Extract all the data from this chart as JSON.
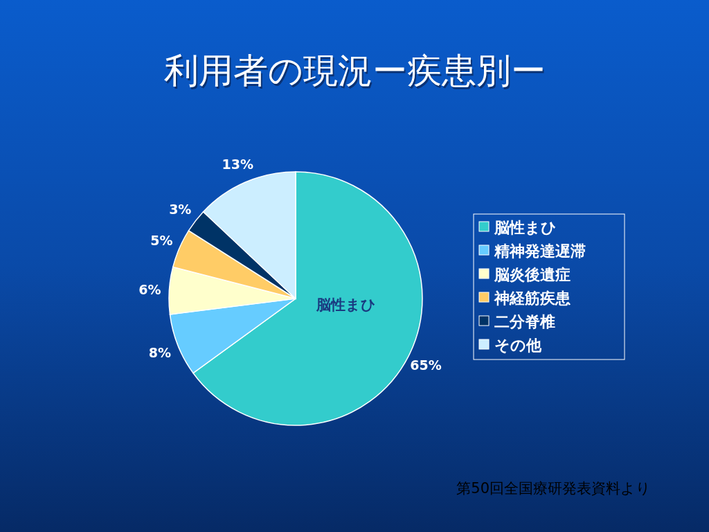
{
  "chart_data": {
    "type": "pie",
    "title": "利用者の現況ー疾患別ー",
    "categories": [
      "脳性まひ",
      "精神発達遅滞",
      "脳炎後遺症",
      "神経筋疾患",
      "二分脊椎",
      "その他"
    ],
    "values": [
      65,
      8,
      6,
      5,
      3,
      13
    ],
    "colors": [
      "#33cccc",
      "#66ccff",
      "#ffffcc",
      "#ffcc66",
      "#003366",
      "#cceeff"
    ],
    "value_labels": [
      "65%",
      "8%",
      "6%",
      "5%",
      "3%",
      "13%"
    ],
    "legend": "right",
    "annotations": [
      {
        "text": "脳性まひ",
        "x": "脳性まひ"
      },
      "第50回全国療研発表資料より"
    ]
  }
}
